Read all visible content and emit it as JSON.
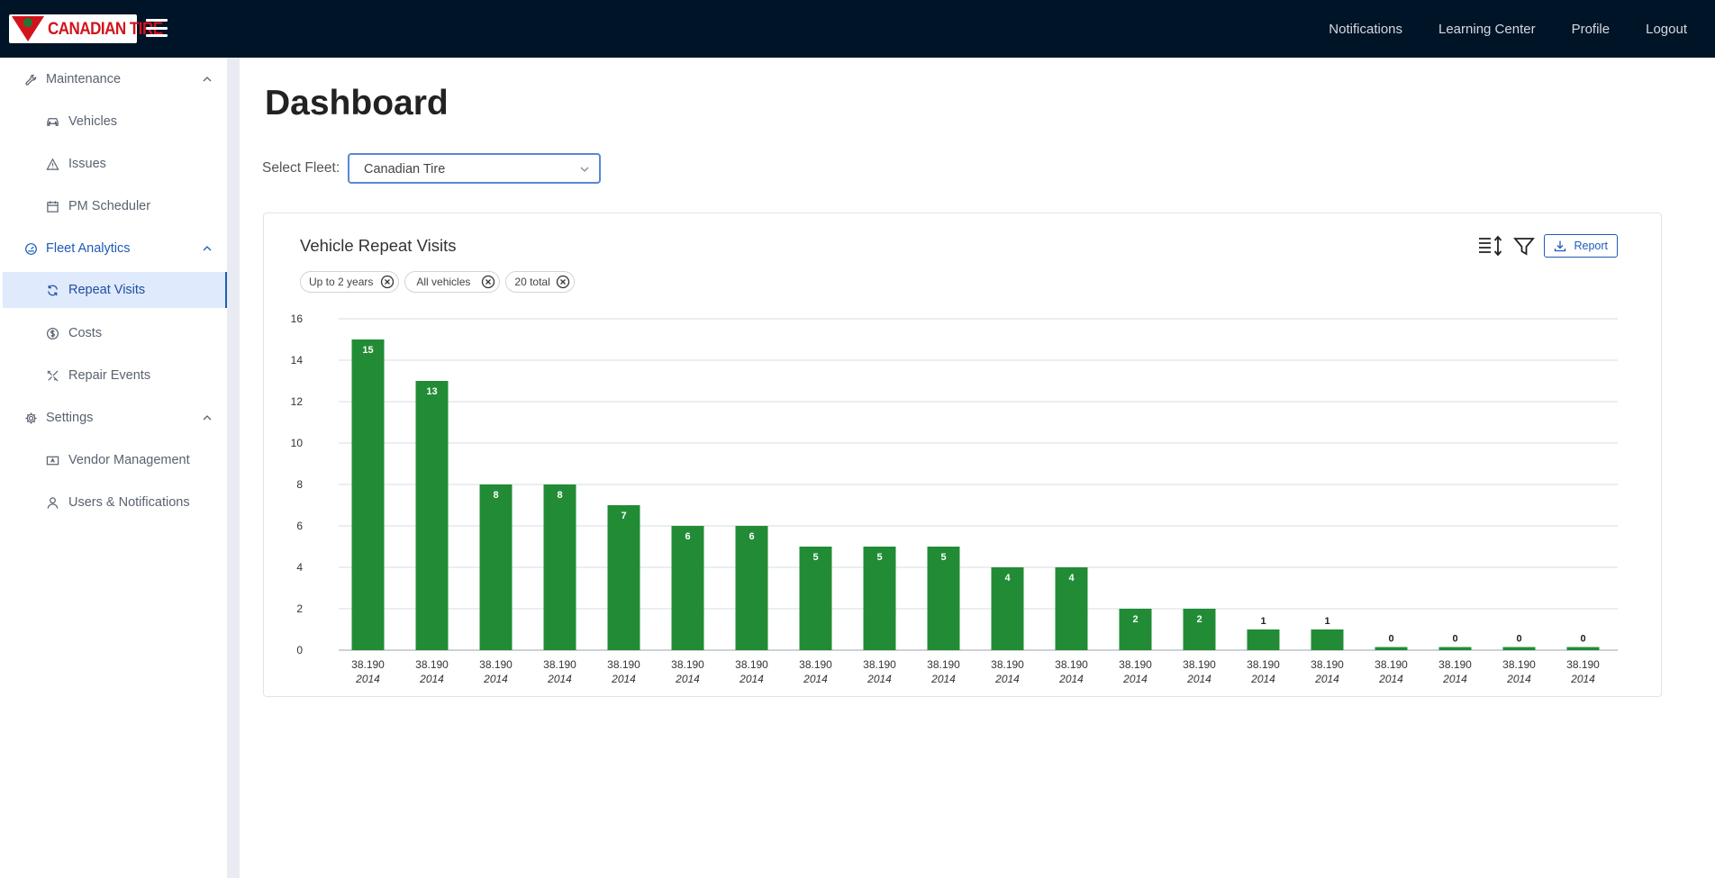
{
  "header": {
    "brand": "CANADIAN TIRE",
    "nav": [
      "Notifications",
      "Learning Center",
      "Profile",
      "Logout"
    ]
  },
  "sidebar": {
    "groups": [
      {
        "label": "Maintenance",
        "icon": "wrench-icon",
        "items": [
          {
            "label": "Vehicles",
            "icon": "car-icon"
          },
          {
            "label": "Issues",
            "icon": "warning-icon"
          },
          {
            "label": "PM Scheduler",
            "icon": "calendar-icon"
          }
        ]
      },
      {
        "label": "Fleet Analytics",
        "icon": "dashboard-gauge-icon",
        "items": [
          {
            "label": "Repeat Visits",
            "icon": "refresh-icon"
          },
          {
            "label": "Costs",
            "icon": "dollar-icon"
          },
          {
            "label": "Repair Events",
            "icon": "tools-icon"
          }
        ]
      },
      {
        "label": "Settings",
        "icon": "gear-icon",
        "items": [
          {
            "label": "Vendor Management",
            "icon": "vendor-card-icon"
          },
          {
            "label": "Users & Notifications",
            "icon": "user-icon"
          }
        ]
      }
    ],
    "selected": "Repeat Visits"
  },
  "main": {
    "title": "Dashboard",
    "fleet_label": "Select Fleet:",
    "fleet_value": "Canadian Tire",
    "card": {
      "title": "Vehicle Repeat Visits",
      "report_label": "Report",
      "chips": [
        "Up to 2 years",
        "All vehicles",
        "20 total"
      ]
    }
  },
  "colors": {
    "header_bg": "#001427",
    "bar": "#218c35",
    "accent": "#1e5bb8",
    "brand_red": "#d3131b"
  },
  "chart_data": {
    "type": "bar",
    "categories": [
      "38.190",
      "38.190",
      "38.190",
      "38.190",
      "38.190",
      "38.190",
      "38.190",
      "38.190",
      "38.190",
      "38.190",
      "38.190",
      "38.190",
      "38.190",
      "38.190",
      "38.190",
      "38.190",
      "38.190",
      "38.190",
      "38.190",
      "38.190"
    ],
    "subcategories": [
      "2014",
      "2014",
      "2014",
      "2014",
      "2014",
      "2014",
      "2014",
      "2014",
      "2014",
      "2014",
      "2014",
      "2014",
      "2014",
      "2014",
      "2014",
      "2014",
      "2014",
      "2014",
      "2014",
      "2014"
    ],
    "values": [
      15,
      13,
      8,
      8,
      7,
      6,
      6,
      5,
      5,
      5,
      4,
      4,
      2,
      2,
      1,
      1,
      0,
      0,
      0,
      0
    ],
    "ylim": [
      0,
      16
    ],
    "yticks": [
      0,
      2,
      4,
      6,
      8,
      10,
      12,
      14,
      16
    ],
    "grid": true,
    "data_labels": true
  }
}
